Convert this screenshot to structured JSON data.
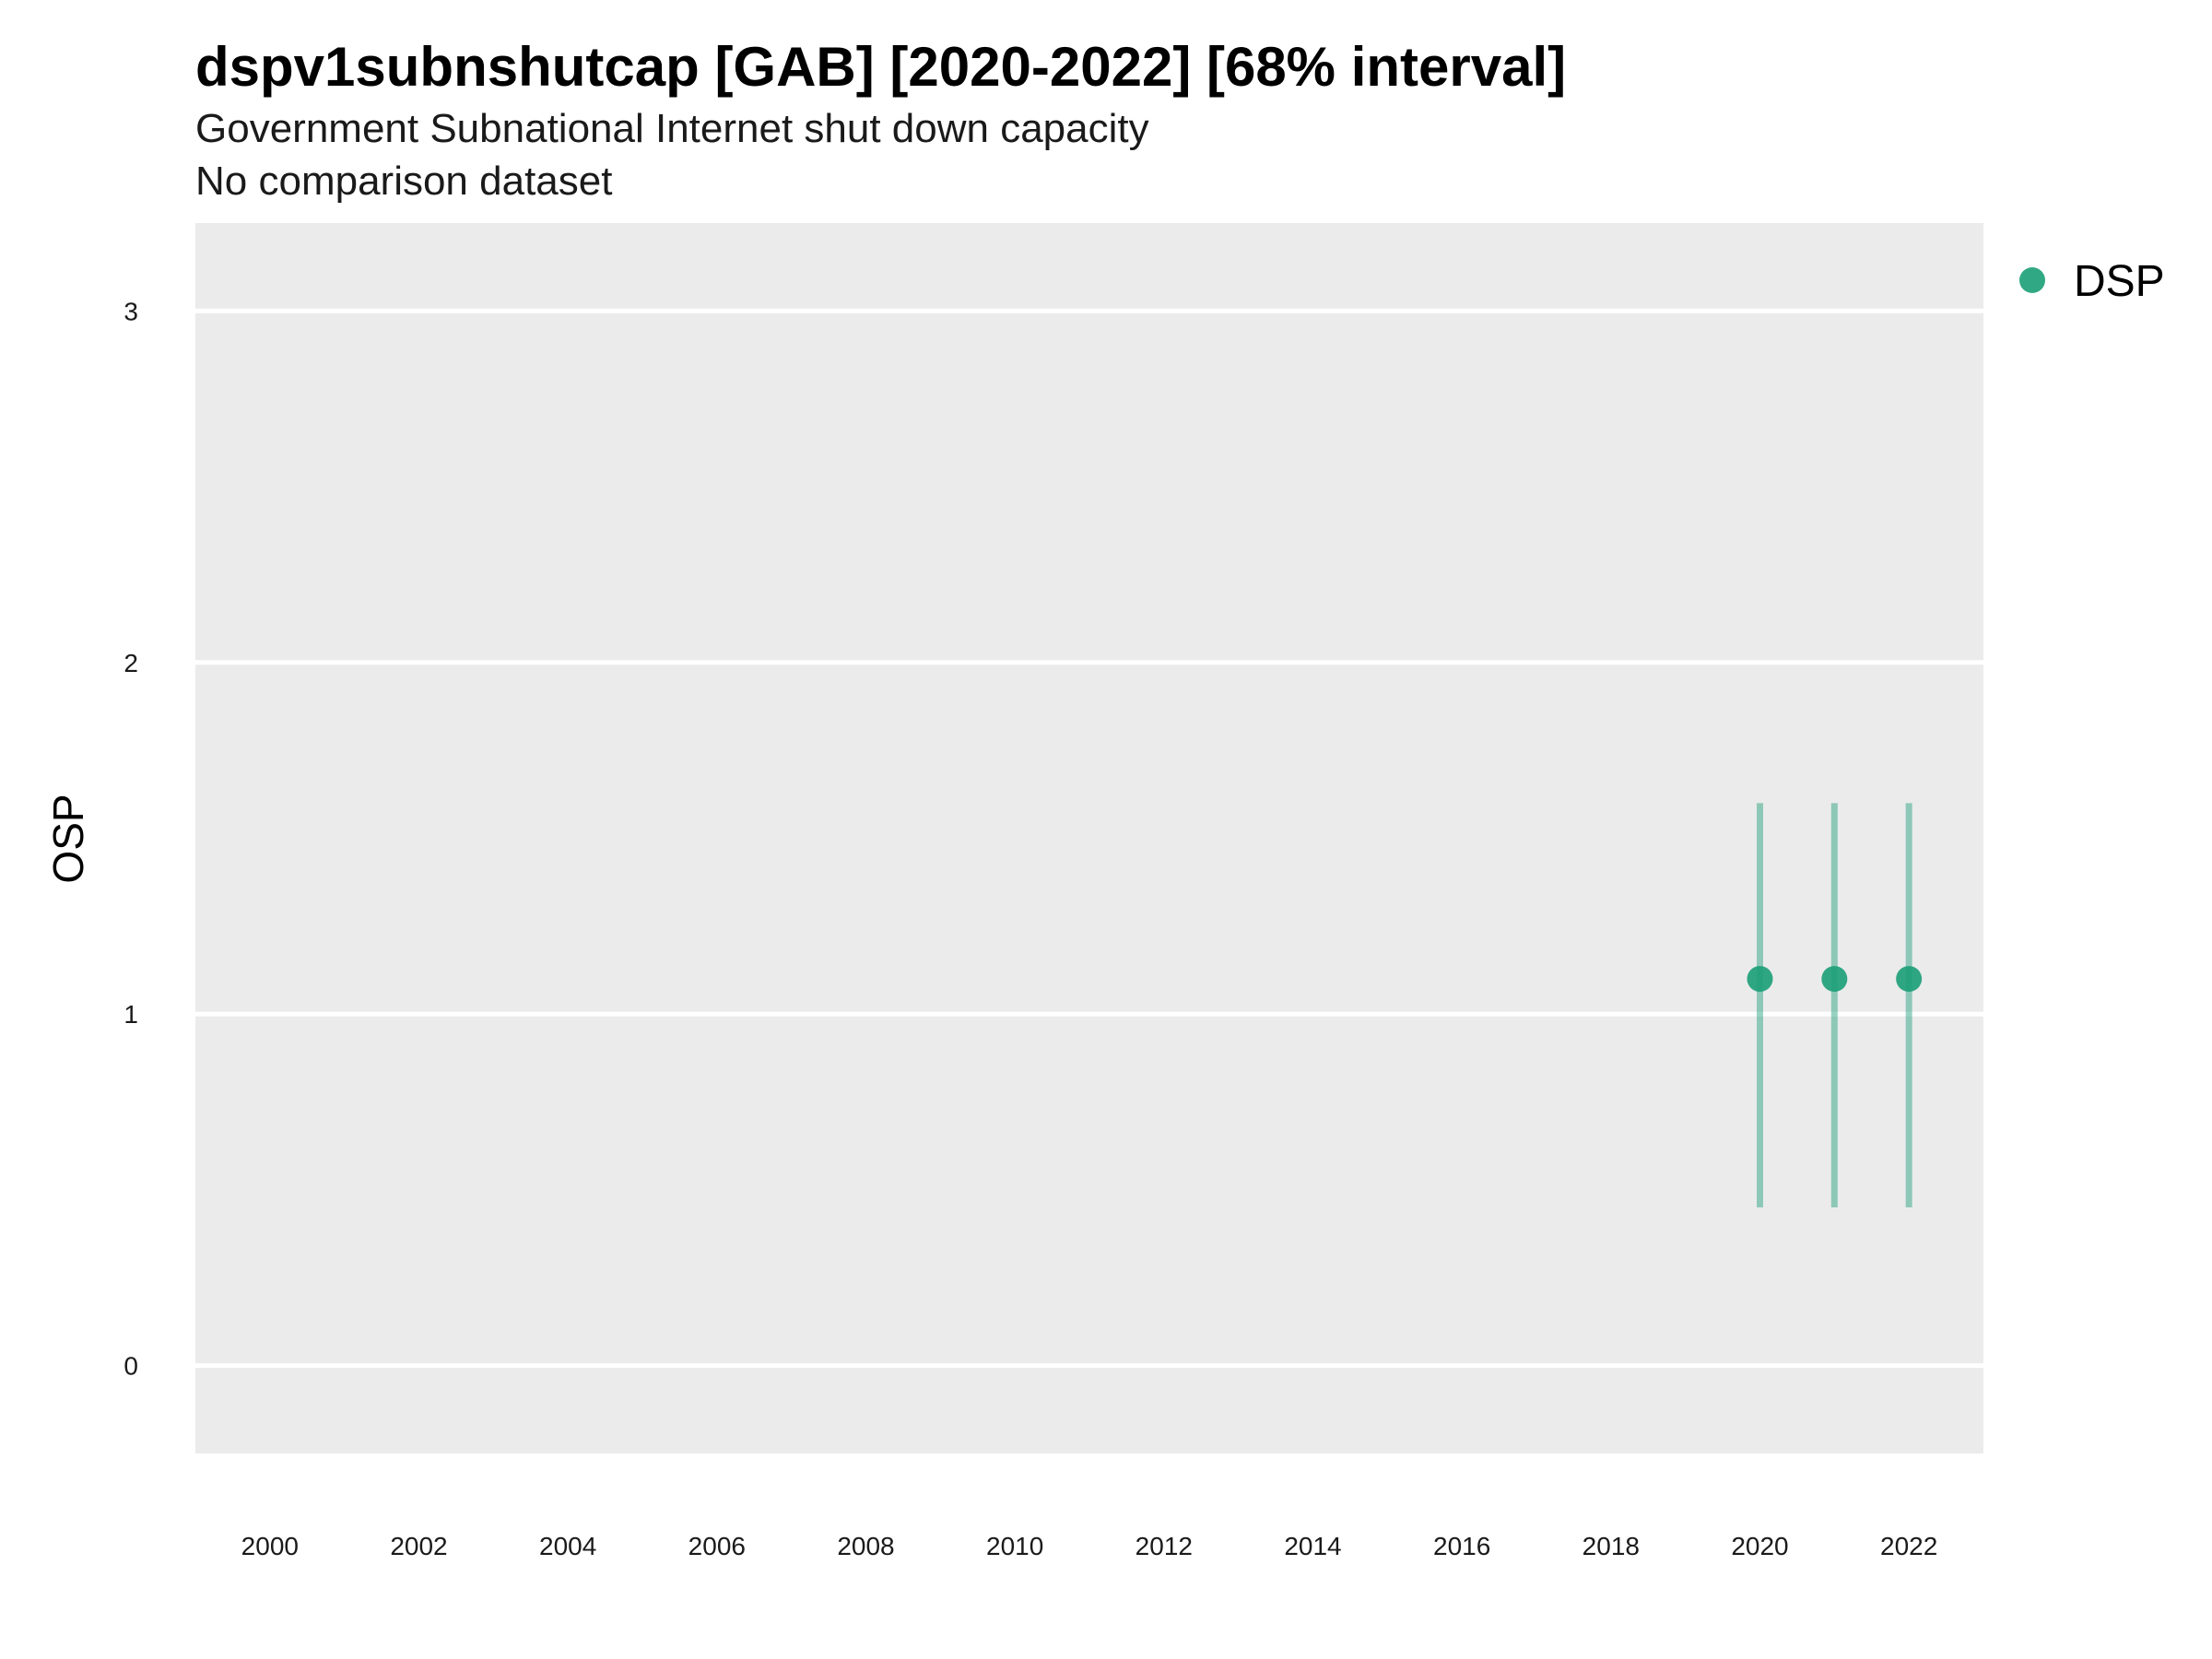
{
  "title": "dspv1subnshutcap [GAB] [2020-2022] [68% interval]",
  "subtitle": "Government Subnational Internet shut down capacity",
  "subtitle2": "No comparison dataset",
  "chart_data": {
    "type": "scatter",
    "ylabel": "OSP",
    "xlabel": "",
    "x_ticks": [
      "2000",
      "2002",
      "2004",
      "2006",
      "2008",
      "2010",
      "2012",
      "2014",
      "2016",
      "2018",
      "2020",
      "2022"
    ],
    "y_ticks": [
      "0",
      "1",
      "2",
      "3"
    ],
    "xlim": [
      1999,
      2023
    ],
    "ylim": [
      -0.25,
      3.25
    ],
    "grid": "horizontal major lines only",
    "legend_position": "right-top",
    "series": [
      {
        "name": "DSP",
        "color": "#1b9e77",
        "points": [
          {
            "x": 2020,
            "y": 1.1,
            "lower": 0.45,
            "upper": 1.6
          },
          {
            "x": 2021,
            "y": 1.1,
            "lower": 0.45,
            "upper": 1.6
          },
          {
            "x": 2022,
            "y": 1.1,
            "lower": 0.45,
            "upper": 1.6
          }
        ]
      }
    ]
  }
}
